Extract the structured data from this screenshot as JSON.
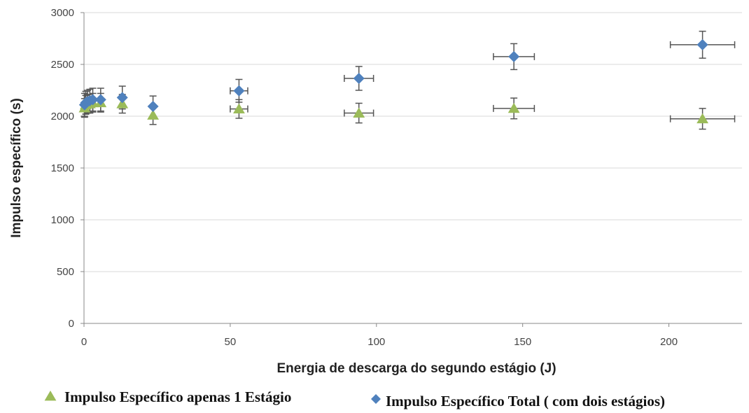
{
  "chart_data": {
    "type": "scatter",
    "title": "",
    "xlabel": "Energia de descarga do segundo estágio (J)",
    "ylabel": "Impulso específico (s)",
    "xlim": [
      0,
      225
    ],
    "ylim": [
      0,
      3000
    ],
    "x_ticks": [
      "0",
      "50",
      "100",
      "150",
      "200"
    ],
    "y_ticks": [
      "0",
      "500",
      "1000",
      "1500",
      "2000",
      "2500",
      "3000"
    ],
    "grid": "horizontal",
    "legend_position": "bottom",
    "series": [
      {
        "name": "Impulso Específico apenas 1 Estágio",
        "marker": "triangle",
        "color": "#9BBB59",
        "points": [
          {
            "x": 0.2,
            "y": 2080,
            "y_err": 90,
            "x_err": 0
          },
          {
            "x": 0.6,
            "y": 2110,
            "y_err": 90,
            "x_err": 0
          },
          {
            "x": 1.2,
            "y": 2120,
            "y_err": 90,
            "x_err": 0
          },
          {
            "x": 2.0,
            "y": 2120,
            "y_err": 90,
            "x_err": 0
          },
          {
            "x": 3.0,
            "y": 2130,
            "y_err": 90,
            "x_err": 0
          },
          {
            "x": 5.7,
            "y": 2130,
            "y_err": 90,
            "x_err": 0
          },
          {
            "x": 13.1,
            "y": 2120,
            "y_err": 90,
            "x_err": 0
          },
          {
            "x": 23.6,
            "y": 2010,
            "y_err": 90,
            "x_err": 0
          },
          {
            "x": 53.0,
            "y": 2070,
            "y_err": 90,
            "x_err": 3
          },
          {
            "x": 94.0,
            "y": 2030,
            "y_err": 95,
            "x_err": 5
          },
          {
            "x": 147.0,
            "y": 2075,
            "y_err": 100,
            "x_err": 7
          },
          {
            "x": 211.5,
            "y": 1975,
            "y_err": 100,
            "x_err": 11
          }
        ]
      },
      {
        "name": "Impulso Específico Total ( com dois estágios)",
        "marker": "diamond",
        "color": "#4F81BD",
        "points": [
          {
            "x": 0.2,
            "y": 2110,
            "y_err": 110,
            "x_err": 0
          },
          {
            "x": 0.6,
            "y": 2130,
            "y_err": 110,
            "x_err": 0
          },
          {
            "x": 1.2,
            "y": 2140,
            "y_err": 110,
            "x_err": 0
          },
          {
            "x": 2.0,
            "y": 2150,
            "y_err": 110,
            "x_err": 0
          },
          {
            "x": 3.0,
            "y": 2160,
            "y_err": 110,
            "x_err": 0
          },
          {
            "x": 5.7,
            "y": 2160,
            "y_err": 110,
            "x_err": 0
          },
          {
            "x": 13.1,
            "y": 2180,
            "y_err": 110,
            "x_err": 0
          },
          {
            "x": 23.6,
            "y": 2095,
            "y_err": 100,
            "x_err": 0
          },
          {
            "x": 53.0,
            "y": 2245,
            "y_err": 110,
            "x_err": 3
          },
          {
            "x": 94.0,
            "y": 2365,
            "y_err": 115,
            "x_err": 5
          },
          {
            "x": 147.0,
            "y": 2575,
            "y_err": 125,
            "x_err": 7
          },
          {
            "x": 211.5,
            "y": 2690,
            "y_err": 130,
            "x_err": 11
          }
        ]
      }
    ]
  }
}
